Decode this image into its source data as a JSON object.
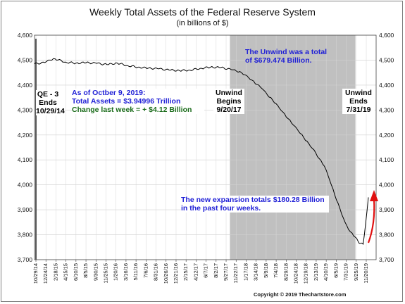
{
  "chart_data": {
    "type": "line",
    "title": "Weekly Total Assets of the Federal Reserve System",
    "subtitle": "(in billions of $)",
    "ylim": [
      3700,
      4600
    ],
    "yticks": [
      3700,
      3800,
      3900,
      4000,
      4100,
      4200,
      4300,
      4400,
      4500,
      4600
    ],
    "ytick_labels": [
      "3,700",
      "3,800",
      "3,900",
      "4,000",
      "4,100",
      "4,200",
      "4,300",
      "4,400",
      "4,500",
      "4,600"
    ],
    "grid": true,
    "x_date_range": [
      "2014-10-29",
      "2019-11-20"
    ],
    "xtick_labels": [
      "10/29/14",
      "12/24/14",
      "2/18/15",
      "4/15/15",
      "6/10/15",
      "8/5/15",
      "9/30/15",
      "11/25/15",
      "1/20/16",
      "3/16/16",
      "5/11/16",
      "7/6/16",
      "8/31/16",
      "10/26/16",
      "12/21/16",
      "2/15/17",
      "4/12/17",
      "6/7/17",
      "8/2/17",
      "9/27/17",
      "11/22/17",
      "1/17/18",
      "3/14/18",
      "5/9/18",
      "7/4/18",
      "8/29/18",
      "10/24/18",
      "12/19/18",
      "2/13/19",
      "4/10/19",
      "6/5/19",
      "7/31/19",
      "9/25/19",
      "11/20/19"
    ],
    "shaded_region": [
      "2017-09-20",
      "2019-07-31"
    ],
    "series": [
      {
        "color": "#000000",
        "points": [
          [
            "2014-10-29",
            4485
          ],
          [
            "2014-12-24",
            4490
          ],
          [
            "2015-01-21",
            4500
          ],
          [
            "2015-02-18",
            4505
          ],
          [
            "2015-04-15",
            4492
          ],
          [
            "2015-06-10",
            4488
          ],
          [
            "2015-08-05",
            4490
          ],
          [
            "2015-09-30",
            4487
          ],
          [
            "2015-11-25",
            4482
          ],
          [
            "2016-01-20",
            4488
          ],
          [
            "2016-03-16",
            4478
          ],
          [
            "2016-05-11",
            4472
          ],
          [
            "2016-07-06",
            4468
          ],
          [
            "2016-08-31",
            4465
          ],
          [
            "2016-10-26",
            4460
          ],
          [
            "2016-12-21",
            4458
          ],
          [
            "2017-02-15",
            4460
          ],
          [
            "2017-04-12",
            4467
          ],
          [
            "2017-06-07",
            4472
          ],
          [
            "2017-08-02",
            4470
          ],
          [
            "2017-09-27",
            4462
          ],
          [
            "2017-10-25",
            4456
          ],
          [
            "2017-11-22",
            4450
          ],
          [
            "2017-12-20",
            4438
          ],
          [
            "2018-01-17",
            4420
          ],
          [
            "2018-02-14",
            4402
          ],
          [
            "2018-03-14",
            4385
          ],
          [
            "2018-04-11",
            4360
          ],
          [
            "2018-05-09",
            4340
          ],
          [
            "2018-06-06",
            4318
          ],
          [
            "2018-07-04",
            4292
          ],
          [
            "2018-08-01",
            4265
          ],
          [
            "2018-08-29",
            4240
          ],
          [
            "2018-09-26",
            4215
          ],
          [
            "2018-10-24",
            4190
          ],
          [
            "2018-11-21",
            4165
          ],
          [
            "2018-12-19",
            4140
          ],
          [
            "2019-01-16",
            4105
          ],
          [
            "2019-02-13",
            4075
          ],
          [
            "2019-03-13",
            4020
          ],
          [
            "2019-04-10",
            3960
          ],
          [
            "2019-05-08",
            3905
          ],
          [
            "2019-06-05",
            3850
          ],
          [
            "2019-07-03",
            3812
          ],
          [
            "2019-07-31",
            3790
          ],
          [
            "2019-08-21",
            3765
          ],
          [
            "2019-09-11",
            3762
          ],
          [
            "2019-09-25",
            3850
          ],
          [
            "2019-10-09",
            3950
          ]
        ]
      }
    ],
    "annotations": [
      {
        "id": "qe3",
        "lines": [
          "QE - 3",
          "Ends",
          "10/29/14"
        ],
        "color": "#000000"
      },
      {
        "id": "status",
        "lines": [
          "As of Octber 9, 2019:",
          "Total Assets = $3.94996 Trillion",
          "Change last week = + $4.12 Billion"
        ],
        "colors": [
          "#1f1fd6",
          "#1f1fd6",
          "#1a6b1a"
        ]
      },
      {
        "id": "unwind-total",
        "lines": [
          "The Unwind was a total",
          "of $679.474 Billion."
        ],
        "color": "#1f1fd6"
      },
      {
        "id": "unwind-begins",
        "lines": [
          "Unwind",
          "Begins",
          "9/20/17"
        ],
        "color": "#000000"
      },
      {
        "id": "unwind-ends",
        "lines": [
          "Unwind",
          "Ends",
          "7/31/19"
        ],
        "color": "#000000"
      },
      {
        "id": "expansion",
        "lines": [
          "The new expansion totals $180.28 Billion",
          "in the past four weeks."
        ],
        "color": "#1f1fd6"
      }
    ],
    "copyright": "Copyright © 2019 Thechartstore.com"
  }
}
